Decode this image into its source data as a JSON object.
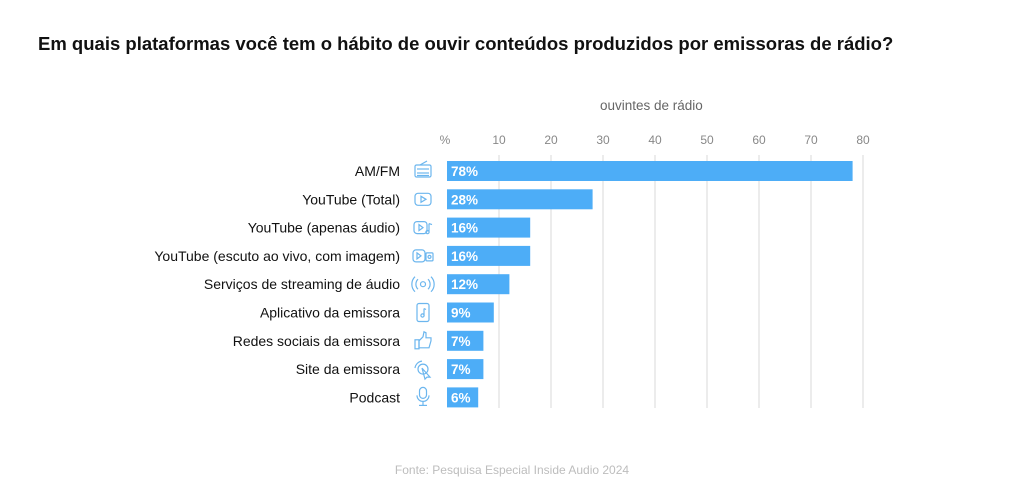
{
  "title": "Em quais plataformas você tem o hábito de ouvir conteúdos produzidos por emissoras de rádio?",
  "source": "Fonte: Pesquisa Especial Inside Audio 2024",
  "colors": {
    "bar": "#4dadf7",
    "icon": "#6cb6ee",
    "grid": "#d9d9d9"
  },
  "chart_data": {
    "type": "bar",
    "orientation": "horizontal",
    "axis_title": "ouvintes de rádio",
    "unit_label": "%",
    "ticks": [
      "10",
      "20",
      "30",
      "40",
      "50",
      "60",
      "70",
      "80"
    ],
    "xlim": [
      0,
      80
    ],
    "grid": true,
    "categories": [
      "AM/FM",
      "YouTube (Total)",
      "YouTube (apenas áudio)",
      "YouTube (escuto ao vivo, com imagem)",
      "Serviços de streaming de áudio",
      "Aplicativo da emissora",
      "Redes sociais da emissora",
      "Site da emissora",
      "Podcast"
    ],
    "values": [
      78,
      28,
      16,
      16,
      12,
      9,
      7,
      7,
      6
    ],
    "value_labels": [
      "78%",
      "28%",
      "16%",
      "16%",
      "12%",
      "9%",
      "7%",
      "7%",
      "6%"
    ],
    "icons": [
      "radio-icon",
      "youtube-icon",
      "youtube-audio-icon",
      "youtube-video-icon",
      "streaming-icon",
      "app-icon",
      "thumbs-up-icon",
      "click-icon",
      "microphone-icon"
    ]
  }
}
